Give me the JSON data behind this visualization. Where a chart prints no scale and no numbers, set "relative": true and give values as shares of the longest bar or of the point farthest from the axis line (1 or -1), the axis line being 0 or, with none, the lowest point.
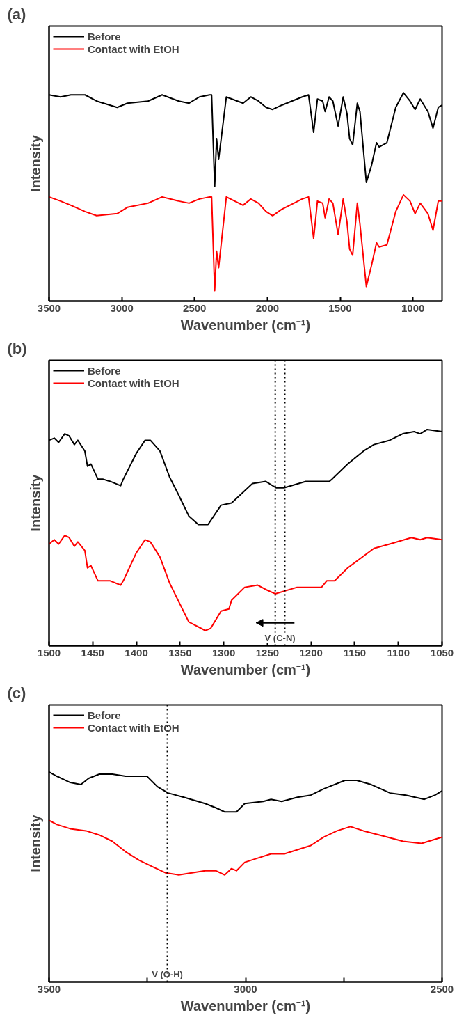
{
  "chart_data": [
    {
      "type": "line",
      "title": "(a)",
      "xlabel": "Wavenumber (cm⁻¹)",
      "ylabel": "Intensity",
      "relative": true,
      "tick_labels": "x",
      "legend": "top left",
      "xlim": [
        3500,
        800
      ],
      "xticks": [
        3500,
        3000,
        2500,
        2000,
        1500,
        1000
      ],
      "series": [
        {
          "name": "Before",
          "color": "#000000",
          "x": [
            3500,
            3421,
            3350,
            3253,
            3173,
            3032,
            2962,
            2820,
            2723,
            2609,
            2538,
            2467,
            2397,
            2383,
            2362,
            2349,
            2335,
            2282,
            2167,
            2114,
            2061,
            2009,
            1964,
            1903,
            1761,
            1717,
            1682,
            1656,
            1620,
            1603,
            1576,
            1550,
            1514,
            1479,
            1453,
            1435,
            1414,
            1382,
            1364,
            1320,
            1285,
            1250,
            1232,
            1179,
            1118,
            1065,
            1020,
            985,
            950,
            897,
            862,
            826,
            800
          ],
          "values": [
            0.99,
            0.98,
            0.99,
            0.99,
            0.96,
            0.93,
            0.95,
            0.96,
            0.99,
            0.96,
            0.95,
            0.98,
            0.99,
            0.99,
            0.55,
            0.78,
            0.68,
            0.98,
            0.95,
            0.98,
            0.96,
            0.93,
            0.92,
            0.94,
            0.98,
            0.99,
            0.81,
            0.97,
            0.96,
            0.91,
            0.98,
            0.96,
            0.84,
            0.98,
            0.9,
            0.78,
            0.75,
            0.95,
            0.91,
            0.57,
            0.65,
            0.76,
            0.74,
            0.76,
            0.93,
            1.0,
            0.96,
            0.92,
            0.97,
            0.91,
            0.83,
            0.93,
            0.94
          ]
        },
        {
          "name": "Contact with EtOH",
          "color": "#ff0000",
          "x": [
            3500,
            3421,
            3350,
            3253,
            3173,
            3032,
            2962,
            2820,
            2723,
            2609,
            2538,
            2467,
            2397,
            2383,
            2362,
            2349,
            2335,
            2282,
            2167,
            2114,
            2061,
            2009,
            1964,
            1903,
            1761,
            1717,
            1682,
            1656,
            1620,
            1603,
            1576,
            1550,
            1514,
            1479,
            1453,
            1435,
            1414,
            1382,
            1364,
            1320,
            1285,
            1250,
            1232,
            1179,
            1118,
            1065,
            1020,
            985,
            950,
            897,
            862,
            826,
            800
          ],
          "values": [
            0.5,
            0.48,
            0.46,
            0.43,
            0.41,
            0.42,
            0.45,
            0.47,
            0.5,
            0.48,
            0.47,
            0.49,
            0.5,
            0.5,
            0.05,
            0.24,
            0.16,
            0.5,
            0.46,
            0.49,
            0.47,
            0.43,
            0.41,
            0.44,
            0.49,
            0.5,
            0.3,
            0.48,
            0.47,
            0.4,
            0.49,
            0.47,
            0.32,
            0.49,
            0.38,
            0.25,
            0.22,
            0.47,
            0.37,
            0.07,
            0.17,
            0.28,
            0.26,
            0.27,
            0.43,
            0.51,
            0.48,
            0.42,
            0.47,
            0.42,
            0.34,
            0.48,
            0.48
          ]
        }
      ]
    },
    {
      "type": "line",
      "title": "(b)",
      "xlabel": "Wavenumber (cm⁻¹)",
      "ylabel": "Intensity",
      "relative": true,
      "tick_labels": "x",
      "legend": "top left",
      "xlim": [
        1500,
        1050
      ],
      "xticks": [
        1500,
        1450,
        1400,
        1350,
        1300,
        1250,
        1200,
        1150,
        1100,
        1050
      ],
      "ref_lines": [
        {
          "axis": "x",
          "value": 1241,
          "color": "#000000",
          "line_style": "dotted"
        },
        {
          "axis": "x",
          "value": 1230,
          "color": "#000000",
          "line_style": "dotted"
        }
      ],
      "annotations": [
        "V (C-N)"
      ],
      "series": [
        {
          "name": "Before",
          "color": "#000000",
          "x": [
            1500,
            1494,
            1489,
            1482,
            1477,
            1471,
            1467,
            1459,
            1456,
            1452,
            1444,
            1438,
            1430,
            1418,
            1415,
            1400,
            1390,
            1384,
            1373,
            1362,
            1352,
            1340,
            1329,
            1318,
            1303,
            1291,
            1267,
            1252,
            1240,
            1231,
            1206,
            1179,
            1176,
            1158,
            1140,
            1128,
            1110,
            1095,
            1082,
            1075,
            1067,
            1050
          ],
          "values": [
            0.95,
            0.96,
            0.94,
            0.98,
            0.97,
            0.93,
            0.95,
            0.9,
            0.83,
            0.84,
            0.77,
            0.77,
            0.76,
            0.74,
            0.77,
            0.89,
            0.95,
            0.95,
            0.9,
            0.78,
            0.7,
            0.6,
            0.56,
            0.56,
            0.65,
            0.66,
            0.75,
            0.76,
            0.73,
            0.73,
            0.76,
            0.76,
            0.77,
            0.84,
            0.9,
            0.93,
            0.95,
            0.98,
            0.99,
            0.98,
            1.0,
            0.99
          ]
        },
        {
          "name": "Contact with EtOH",
          "color": "#ff0000",
          "x": [
            1500,
            1494,
            1489,
            1482,
            1477,
            1471,
            1467,
            1459,
            1456,
            1452,
            1444,
            1430,
            1418,
            1415,
            1400,
            1390,
            1384,
            1373,
            1362,
            1340,
            1321,
            1315,
            1303,
            1294,
            1291,
            1276,
            1261,
            1252,
            1241,
            1216,
            1188,
            1182,
            1173,
            1158,
            1128,
            1110,
            1085,
            1075,
            1067,
            1050
          ],
          "values": [
            0.47,
            0.49,
            0.47,
            0.51,
            0.5,
            0.46,
            0.48,
            0.44,
            0.36,
            0.37,
            0.3,
            0.3,
            0.28,
            0.3,
            0.43,
            0.49,
            0.48,
            0.41,
            0.29,
            0.11,
            0.07,
            0.08,
            0.16,
            0.17,
            0.21,
            0.27,
            0.28,
            0.26,
            0.24,
            0.27,
            0.27,
            0.3,
            0.3,
            0.36,
            0.45,
            0.47,
            0.5,
            0.49,
            0.5,
            0.49
          ]
        }
      ]
    },
    {
      "type": "line",
      "title": "(c)",
      "xlabel": "Wavenumber (cm⁻¹)",
      "ylabel": "Intensity",
      "relative": true,
      "tick_labels": "x",
      "legend": "top left",
      "xlim": [
        3500,
        2500
      ],
      "xticks": [
        3500,
        {
          "value": 3250,
          "label": null
        },
        3000,
        {
          "value": 2750,
          "label": null
        },
        2500
      ],
      "ref_lines": [
        {
          "axis": "x",
          "value": 3199,
          "label": "V (O-H)",
          "color": "#000000",
          "line_style": "dotted"
        }
      ],
      "series": [
        {
          "name": "Before",
          "color": "#000000",
          "x": [
            3500,
            3480,
            3446,
            3419,
            3399,
            3372,
            3339,
            3305,
            3278,
            3251,
            3224,
            3197,
            3157,
            3103,
            3076,
            3053,
            3023,
            3002,
            2955,
            2935,
            2908,
            2868,
            2834,
            2801,
            2747,
            2717,
            2680,
            2632,
            2592,
            2545,
            2518,
            2500
          ],
          "values": [
            1.0,
            0.98,
            0.95,
            0.94,
            0.97,
            0.99,
            0.99,
            0.98,
            0.98,
            0.98,
            0.93,
            0.9,
            0.88,
            0.85,
            0.83,
            0.81,
            0.81,
            0.85,
            0.86,
            0.87,
            0.86,
            0.88,
            0.89,
            0.92,
            0.96,
            0.96,
            0.94,
            0.9,
            0.89,
            0.87,
            0.89,
            0.91
          ]
        },
        {
          "name": "Contact with EtOH",
          "color": "#ff0000",
          "x": [
            3500,
            3480,
            3446,
            3406,
            3372,
            3339,
            3305,
            3271,
            3238,
            3204,
            3170,
            3103,
            3076,
            3053,
            3036,
            3023,
            3002,
            2969,
            2935,
            2901,
            2834,
            2801,
            2767,
            2733,
            2700,
            2659,
            2599,
            2552,
            2500
          ],
          "values": [
            0.77,
            0.75,
            0.73,
            0.72,
            0.7,
            0.67,
            0.62,
            0.58,
            0.55,
            0.52,
            0.51,
            0.53,
            0.53,
            0.51,
            0.54,
            0.53,
            0.57,
            0.59,
            0.61,
            0.61,
            0.65,
            0.69,
            0.72,
            0.74,
            0.72,
            0.7,
            0.67,
            0.66,
            0.69
          ]
        }
      ]
    }
  ]
}
